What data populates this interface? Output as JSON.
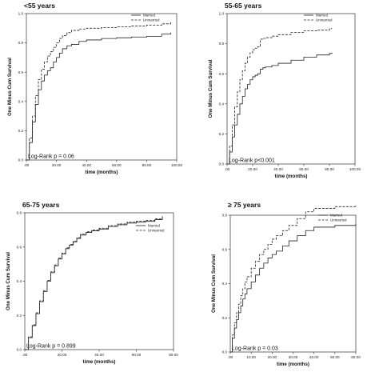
{
  "chart_data": [
    {
      "type": "line",
      "title": "<55 years",
      "xlabel": "time (months)",
      "ylabel": "One Minus Cum Survival",
      "xticks": [
        ".00",
        "20.00",
        "40.00",
        "60.00",
        "80.00",
        "100.00"
      ],
      "yticks": [
        "0.0",
        "0.2",
        "0.4",
        "0.6",
        "0.8",
        "1.0"
      ],
      "xlim": [
        0,
        100
      ],
      "ylim": [
        0,
        1.0
      ],
      "legend_position": "top-right",
      "annotation": "Log-Rank p = 0.06",
      "series": [
        {
          "name": "Married",
          "dash": false,
          "x": [
            0,
            2,
            4,
            6,
            8,
            10,
            12,
            14,
            16,
            18,
            20,
            22,
            24,
            27,
            30,
            35,
            40,
            50,
            60,
            70,
            80,
            90,
            96
          ],
          "y": [
            0.0,
            0.12,
            0.26,
            0.38,
            0.48,
            0.54,
            0.58,
            0.61,
            0.63,
            0.67,
            0.7,
            0.73,
            0.76,
            0.78,
            0.79,
            0.81,
            0.82,
            0.83,
            0.835,
            0.84,
            0.845,
            0.86,
            0.87
          ]
        },
        {
          "name": "Unmarried",
          "dash": true,
          "x": [
            0,
            2,
            4,
            6,
            8,
            10,
            12,
            14,
            16,
            18,
            20,
            22,
            24,
            27,
            30,
            35,
            40,
            50,
            60,
            70,
            80,
            90,
            96
          ],
          "y": [
            0.0,
            0.15,
            0.3,
            0.44,
            0.55,
            0.62,
            0.67,
            0.71,
            0.74,
            0.77,
            0.8,
            0.83,
            0.85,
            0.87,
            0.885,
            0.895,
            0.9,
            0.905,
            0.91,
            0.915,
            0.92,
            0.93,
            0.94
          ]
        }
      ]
    },
    {
      "type": "line",
      "title": "55-65 years",
      "xlabel": "time (months)",
      "ylabel": "One Minus Cum Survival",
      "xticks": [
        ".00",
        "20.00",
        "40.00",
        "60.00",
        "80.00",
        "100.00"
      ],
      "yticks": [
        "0.0",
        "0.2",
        "0.4",
        "0.6",
        "0.8",
        "1.0"
      ],
      "xlim": [
        0,
        100
      ],
      "ylim": [
        0,
        1.0
      ],
      "legend_position": "top-right",
      "annotation": "Log-Rank p<0.001",
      "series": [
        {
          "name": "Married",
          "dash": false,
          "x": [
            0,
            2,
            4,
            6,
            8,
            10,
            12,
            14,
            16,
            18,
            20,
            22,
            24,
            26,
            28,
            30,
            35,
            40,
            50,
            60,
            70,
            80,
            82
          ],
          "y": [
            0.0,
            0.08,
            0.18,
            0.26,
            0.33,
            0.4,
            0.45,
            0.5,
            0.53,
            0.56,
            0.58,
            0.59,
            0.6,
            0.63,
            0.64,
            0.645,
            0.655,
            0.67,
            0.69,
            0.71,
            0.725,
            0.735,
            0.74
          ]
        },
        {
          "name": "Unmarried",
          "dash": true,
          "x": [
            0,
            2,
            4,
            6,
            8,
            10,
            12,
            14,
            16,
            18,
            20,
            22,
            24,
            26,
            28,
            30,
            35,
            40,
            50,
            60,
            70,
            80,
            82
          ],
          "y": [
            0.0,
            0.12,
            0.26,
            0.38,
            0.48,
            0.56,
            0.62,
            0.67,
            0.71,
            0.74,
            0.76,
            0.77,
            0.78,
            0.83,
            0.835,
            0.84,
            0.85,
            0.86,
            0.875,
            0.885,
            0.89,
            0.9,
            0.9
          ]
        }
      ]
    },
    {
      "type": "line",
      "title": "65-75 years",
      "xlabel": "time (months)",
      "ylabel": "One Minus Cum Survival",
      "xticks": [
        ".00",
        "20.00",
        "40.00",
        "60.00",
        "80.00"
      ],
      "yticks": [
        "0.0",
        "0.2",
        "0.4",
        "0.6",
        "0.8"
      ],
      "xlim": [
        0,
        80
      ],
      "ylim": [
        0,
        0.8
      ],
      "legend_position": "right",
      "annotation": "Log-Rank  p = 0.899",
      "series": [
        {
          "name": "Married",
          "dash": false,
          "x": [
            0,
            2,
            4,
            6,
            8,
            10,
            12,
            14,
            16,
            18,
            20,
            22,
            24,
            26,
            28,
            30,
            33,
            36,
            40,
            45,
            50,
            55,
            60,
            65,
            70,
            74
          ],
          "y": [
            0.0,
            0.07,
            0.14,
            0.21,
            0.28,
            0.34,
            0.4,
            0.45,
            0.49,
            0.53,
            0.56,
            0.59,
            0.61,
            0.63,
            0.65,
            0.67,
            0.685,
            0.695,
            0.705,
            0.72,
            0.73,
            0.74,
            0.745,
            0.75,
            0.76,
            0.775
          ]
        },
        {
          "name": "Unmarried",
          "dash": true,
          "x": [
            0,
            2,
            4,
            6,
            8,
            10,
            12,
            14,
            16,
            18,
            20,
            22,
            24,
            26,
            28,
            30,
            33,
            36,
            40,
            45,
            50,
            55,
            60,
            65,
            70,
            74
          ],
          "y": [
            0.0,
            0.075,
            0.145,
            0.215,
            0.285,
            0.345,
            0.405,
            0.455,
            0.495,
            0.535,
            0.565,
            0.595,
            0.615,
            0.635,
            0.655,
            0.675,
            0.69,
            0.7,
            0.71,
            0.725,
            0.735,
            0.745,
            0.75,
            0.755,
            0.765,
            0.78
          ]
        }
      ]
    },
    {
      "type": "line",
      "title": "≥ 75 years",
      "xlabel": "time (months)",
      "ylabel": "One Minus Cum Survival",
      "xticks": [
        ".00",
        "10.00",
        "20.00",
        "30.00",
        "40.00",
        "50.00",
        "60.00"
      ],
      "yticks": [
        "0.0",
        "0.2",
        "0.4",
        "0.6",
        "0.8"
      ],
      "xlim": [
        0,
        60
      ],
      "ylim": [
        0,
        0.8
      ],
      "legend_position": "top-right",
      "annotation": "Log-Rank  p = 0.03",
      "series": [
        {
          "name": "Married",
          "dash": false,
          "x": [
            0,
            1,
            2,
            3,
            4,
            5,
            6,
            7,
            8,
            10,
            12,
            14,
            16,
            18,
            20,
            22,
            25,
            28,
            32,
            36,
            40,
            50,
            60
          ],
          "y": [
            0.0,
            0.08,
            0.14,
            0.19,
            0.23,
            0.27,
            0.31,
            0.34,
            0.37,
            0.41,
            0.45,
            0.49,
            0.52,
            0.55,
            0.57,
            0.59,
            0.62,
            0.65,
            0.68,
            0.71,
            0.73,
            0.74,
            0.75
          ]
        },
        {
          "name": "Unmarried",
          "dash": true,
          "x": [
            0,
            1,
            2,
            3,
            4,
            5,
            6,
            7,
            8,
            10,
            12,
            14,
            16,
            18,
            20,
            22,
            25,
            28,
            32,
            36,
            40,
            50,
            60
          ],
          "y": [
            0.0,
            0.1,
            0.17,
            0.23,
            0.28,
            0.33,
            0.37,
            0.41,
            0.44,
            0.49,
            0.53,
            0.57,
            0.6,
            0.63,
            0.66,
            0.68,
            0.71,
            0.74,
            0.78,
            0.82,
            0.84,
            0.85,
            0.86
          ]
        }
      ]
    }
  ]
}
